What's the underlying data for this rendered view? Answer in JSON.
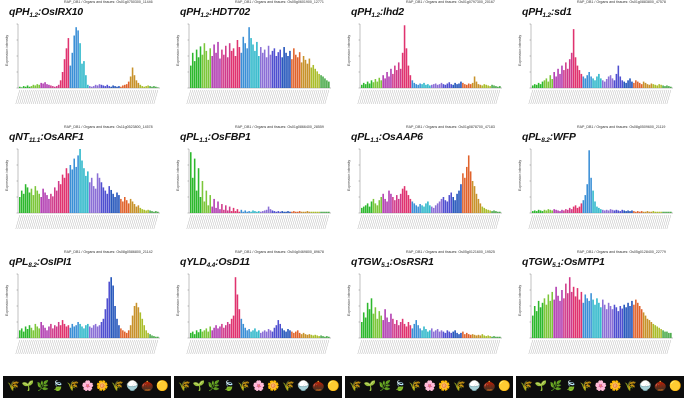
{
  "header_text": "RAP_DB1 / Organs and tissues",
  "ylabel": "Expression intensity",
  "organ_strip": [
    "🌾",
    "🌱",
    "🌿",
    "🍃",
    "🌾",
    "🌸",
    "🌼",
    "🌾",
    "🍚",
    "🌰",
    "🟡"
  ],
  "colors": [
    "#2db82d",
    "#7cc63a",
    "#b03ab0",
    "#d03a8a",
    "#e0336f",
    "#3a8fd6",
    "#2bb7c9",
    "#8b6fd6",
    "#4f4fd0",
    "#1c4fb8",
    "#e0622b",
    "#c8922b",
    "#aabd2a",
    "#46a846"
  ],
  "panels": [
    {
      "title_pre": "qPH",
      "title_sub": "1.2",
      "gene": "OsIRX10",
      "header_id": "Os01g0750300_11446",
      "chart_data": {
        "type": "bar",
        "ylim": [
          0,
          1
        ],
        "values": [
          0.02,
          0.01,
          0.03,
          0.02,
          0.04,
          0.02,
          0.03,
          0.05,
          0.04,
          0.06,
          0.05,
          0.08,
          0.07,
          0.09,
          0.06,
          0.05,
          0.04,
          0.03,
          0.02,
          0.03,
          0.05,
          0.12,
          0.25,
          0.45,
          0.62,
          0.78,
          0.35,
          0.55,
          0.82,
          0.95,
          0.9,
          0.7,
          0.38,
          0.42,
          0.2,
          0.05,
          0.03,
          0.02,
          0.03,
          0.05,
          0.04,
          0.06,
          0.05,
          0.04,
          0.03,
          0.05,
          0.03,
          0.02,
          0.04,
          0.03,
          0.02,
          0.03,
          0.02,
          0.04,
          0.05,
          0.06,
          0.1,
          0.18,
          0.32,
          0.2,
          0.12,
          0.08,
          0.05,
          0.03,
          0.02,
          0.03,
          0.04,
          0.03,
          0.02,
          0.03,
          0.02,
          0.01
        ]
      }
    },
    {
      "title_pre": "qPH",
      "title_sub": "1.2",
      "gene": "HDT702",
      "header_id": "Os05g0601900_12771",
      "chart_data": {
        "type": "bar",
        "ylim": [
          0,
          1
        ],
        "values": [
          0.35,
          0.55,
          0.42,
          0.6,
          0.48,
          0.65,
          0.52,
          0.7,
          0.58,
          0.44,
          0.62,
          0.5,
          0.68,
          0.55,
          0.72,
          0.46,
          0.6,
          0.52,
          0.66,
          0.48,
          0.7,
          0.58,
          0.62,
          0.5,
          0.75,
          0.64,
          0.55,
          0.8,
          0.7,
          0.62,
          0.95,
          0.78,
          0.68,
          0.58,
          0.72,
          0.5,
          0.64,
          0.55,
          0.6,
          0.48,
          0.66,
          0.52,
          0.58,
          0.62,
          0.5,
          0.56,
          0.6,
          0.48,
          0.64,
          0.55,
          0.5,
          0.58,
          0.45,
          0.62,
          0.52,
          0.48,
          0.56,
          0.4,
          0.5,
          0.44,
          0.38,
          0.46,
          0.32,
          0.36,
          0.3,
          0.26,
          0.22,
          0.2,
          0.18,
          0.15,
          0.12,
          0.1
        ]
      }
    },
    {
      "title_pre": "qPH",
      "title_sub": "1.2",
      "gene": "lhd2",
      "header_id": "Os01g0797300_20167",
      "chart_data": {
        "type": "bar",
        "ylim": [
          0,
          1
        ],
        "values": [
          0.05,
          0.08,
          0.06,
          0.1,
          0.07,
          0.12,
          0.09,
          0.14,
          0.1,
          0.16,
          0.12,
          0.2,
          0.15,
          0.25,
          0.18,
          0.3,
          0.22,
          0.35,
          0.28,
          0.4,
          0.3,
          0.55,
          0.98,
          0.62,
          0.35,
          0.2,
          0.12,
          0.08,
          0.06,
          0.05,
          0.07,
          0.06,
          0.08,
          0.05,
          0.06,
          0.04,
          0.05,
          0.06,
          0.07,
          0.05,
          0.06,
          0.08,
          0.06,
          0.05,
          0.07,
          0.09,
          0.06,
          0.05,
          0.08,
          0.06,
          0.07,
          0.1,
          0.08,
          0.06,
          0.05,
          0.07,
          0.06,
          0.08,
          0.18,
          0.1,
          0.06,
          0.05,
          0.04,
          0.06,
          0.05,
          0.04,
          0.03,
          0.05,
          0.04,
          0.03,
          0.02,
          0.03
        ]
      }
    },
    {
      "title_pre": "qPH",
      "title_sub": "1.2",
      "gene": "sd1",
      "header_id": "Os01g0883800_47578",
      "chart_data": {
        "type": "bar",
        "ylim": [
          0,
          1
        ],
        "values": [
          0.04,
          0.06,
          0.05,
          0.08,
          0.06,
          0.1,
          0.12,
          0.15,
          0.1,
          0.2,
          0.14,
          0.25,
          0.18,
          0.3,
          0.22,
          0.35,
          0.28,
          0.4,
          0.3,
          0.45,
          0.55,
          0.92,
          0.48,
          0.35,
          0.28,
          0.22,
          0.18,
          0.15,
          0.2,
          0.25,
          0.18,
          0.15,
          0.12,
          0.18,
          0.22,
          0.15,
          0.12,
          0.1,
          0.14,
          0.18,
          0.2,
          0.15,
          0.12,
          0.22,
          0.35,
          0.18,
          0.12,
          0.1,
          0.08,
          0.12,
          0.15,
          0.1,
          0.08,
          0.12,
          0.1,
          0.08,
          0.06,
          0.1,
          0.08,
          0.06,
          0.05,
          0.07,
          0.06,
          0.05,
          0.04,
          0.06,
          0.05,
          0.04,
          0.03,
          0.04,
          0.03,
          0.02
        ]
      }
    },
    {
      "title_pre": "qNT",
      "title_sub": "11.1",
      "gene": "OsARF1",
      "header_id": "Os11g0523800_14578",
      "chart_data": {
        "type": "bar",
        "ylim": [
          0,
          1
        ],
        "values": [
          0.25,
          0.35,
          0.3,
          0.45,
          0.4,
          0.32,
          0.38,
          0.28,
          0.42,
          0.35,
          0.3,
          0.25,
          0.38,
          0.32,
          0.28,
          0.22,
          0.3,
          0.26,
          0.4,
          0.35,
          0.5,
          0.45,
          0.6,
          0.55,
          0.7,
          0.62,
          0.75,
          0.68,
          0.85,
          0.72,
          0.9,
          1.0,
          0.82,
          0.7,
          0.58,
          0.65,
          0.48,
          0.55,
          0.42,
          0.38,
          0.62,
          0.55,
          0.48,
          0.4,
          0.35,
          0.3,
          0.42,
          0.36,
          0.3,
          0.25,
          0.32,
          0.28,
          0.22,
          0.18,
          0.25,
          0.2,
          0.15,
          0.22,
          0.18,
          0.14,
          0.1,
          0.12,
          0.08,
          0.06,
          0.05,
          0.04,
          0.05,
          0.04,
          0.03,
          0.02,
          0.03,
          0.02
        ]
      }
    },
    {
      "title_pre": "qPL",
      "title_sub": "1.1",
      "gene": "OsFBP1",
      "header_id": "Os01g0866400_28559",
      "chart_data": {
        "type": "bar",
        "ylim": [
          0,
          1
        ],
        "values": [
          0.95,
          0.55,
          0.85,
          0.35,
          0.7,
          0.25,
          0.5,
          0.18,
          0.35,
          0.12,
          0.28,
          0.1,
          0.22,
          0.08,
          0.18,
          0.06,
          0.14,
          0.05,
          0.12,
          0.04,
          0.1,
          0.03,
          0.08,
          0.03,
          0.06,
          0.02,
          0.05,
          0.02,
          0.04,
          0.02,
          0.03,
          0.02,
          0.04,
          0.03,
          0.02,
          0.03,
          0.02,
          0.03,
          0.04,
          0.05,
          0.1,
          0.06,
          0.04,
          0.03,
          0.02,
          0.03,
          0.02,
          0.03,
          0.02,
          0.02,
          0.03,
          0.02,
          0.02,
          0.03,
          0.02,
          0.02,
          0.03,
          0.02,
          0.02,
          0.02,
          0.03,
          0.02,
          0.02,
          0.02,
          0.02,
          0.02,
          0.02,
          0.02,
          0.02,
          0.02,
          0.02,
          0.02
        ]
      }
    },
    {
      "title_pre": "qPL",
      "title_sub": "1.1",
      "gene": "OsAAP6",
      "header_id": "Os01g0878700_47183",
      "chart_data": {
        "type": "bar",
        "ylim": [
          0,
          1
        ],
        "values": [
          0.08,
          0.1,
          0.12,
          0.15,
          0.1,
          0.18,
          0.22,
          0.15,
          0.12,
          0.2,
          0.25,
          0.3,
          0.22,
          0.18,
          0.35,
          0.3,
          0.25,
          0.2,
          0.28,
          0.22,
          0.3,
          0.38,
          0.42,
          0.35,
          0.28,
          0.22,
          0.18,
          0.15,
          0.12,
          0.1,
          0.14,
          0.12,
          0.1,
          0.15,
          0.18,
          0.12,
          0.1,
          0.08,
          0.12,
          0.15,
          0.18,
          0.22,
          0.25,
          0.2,
          0.18,
          0.28,
          0.32,
          0.25,
          0.2,
          0.3,
          0.35,
          0.45,
          0.62,
          0.55,
          0.72,
          0.9,
          0.65,
          0.5,
          0.42,
          0.3,
          0.22,
          0.15,
          0.1,
          0.08,
          0.06,
          0.05,
          0.04,
          0.03,
          0.04,
          0.03,
          0.02,
          0.02
        ]
      }
    },
    {
      "title_pre": "qPL",
      "title_sub": "8.2",
      "gene": "WFP",
      "header_id": "Os08g0509600_21119",
      "chart_data": {
        "type": "bar",
        "ylim": [
          0,
          1
        ],
        "values": [
          0.03,
          0.04,
          0.03,
          0.05,
          0.04,
          0.03,
          0.05,
          0.04,
          0.06,
          0.05,
          0.04,
          0.06,
          0.05,
          0.04,
          0.03,
          0.05,
          0.04,
          0.06,
          0.05,
          0.08,
          0.06,
          0.1,
          0.12,
          0.08,
          0.1,
          0.15,
          0.2,
          0.28,
          0.45,
          0.98,
          0.55,
          0.35,
          0.18,
          0.1,
          0.08,
          0.06,
          0.05,
          0.04,
          0.05,
          0.04,
          0.06,
          0.05,
          0.04,
          0.05,
          0.04,
          0.03,
          0.05,
          0.04,
          0.03,
          0.04,
          0.03,
          0.04,
          0.03,
          0.02,
          0.03,
          0.02,
          0.03,
          0.02,
          0.02,
          0.03,
          0.02,
          0.02,
          0.03,
          0.02,
          0.02,
          0.02,
          0.02,
          0.02,
          0.02,
          0.02,
          0.02,
          0.02
        ]
      }
    },
    {
      "title_pre": "qPL",
      "title_sub": "8.2",
      "gene": "OsIPI1",
      "header_id": "Os08g0586800_21142",
      "chart_data": {
        "type": "bar",
        "ylim": [
          0,
          1
        ],
        "values": [
          0.12,
          0.15,
          0.1,
          0.18,
          0.14,
          0.2,
          0.16,
          0.12,
          0.22,
          0.18,
          0.15,
          0.25,
          0.2,
          0.16,
          0.12,
          0.18,
          0.22,
          0.15,
          0.2,
          0.18,
          0.25,
          0.2,
          0.28,
          0.22,
          0.18,
          0.2,
          0.16,
          0.22,
          0.18,
          0.2,
          0.25,
          0.22,
          0.18,
          0.15,
          0.2,
          0.22,
          0.18,
          0.16,
          0.2,
          0.22,
          0.18,
          0.2,
          0.25,
          0.3,
          0.45,
          0.62,
          0.88,
          0.95,
          0.82,
          0.5,
          0.3,
          0.2,
          0.15,
          0.12,
          0.1,
          0.08,
          0.12,
          0.2,
          0.35,
          0.5,
          0.55,
          0.48,
          0.4,
          0.3,
          0.2,
          0.12,
          0.08,
          0.06,
          0.04,
          0.03,
          0.02,
          0.02
        ]
      }
    },
    {
      "title_pre": "qYLD",
      "title_sub": "4.4",
      "gene": "OsD11",
      "header_id": "Os04g0469800_89678",
      "chart_data": {
        "type": "bar",
        "ylim": [
          0,
          1
        ],
        "values": [
          0.08,
          0.1,
          0.06,
          0.12,
          0.09,
          0.14,
          0.1,
          0.12,
          0.15,
          0.1,
          0.18,
          0.12,
          0.16,
          0.2,
          0.15,
          0.18,
          0.22,
          0.16,
          0.2,
          0.25,
          0.22,
          0.3,
          0.35,
          0.95,
          0.68,
          0.45,
          0.3,
          0.22,
          0.16,
          0.12,
          0.14,
          0.1,
          0.12,
          0.15,
          0.1,
          0.12,
          0.08,
          0.1,
          0.12,
          0.1,
          0.14,
          0.12,
          0.1,
          0.16,
          0.2,
          0.28,
          0.22,
          0.15,
          0.12,
          0.1,
          0.14,
          0.12,
          0.1,
          0.08,
          0.1,
          0.12,
          0.08,
          0.06,
          0.08,
          0.06,
          0.05,
          0.06,
          0.05,
          0.04,
          0.05,
          0.04,
          0.03,
          0.04,
          0.03,
          0.02,
          0.03,
          0.02
        ]
      }
    },
    {
      "title_pre": "qTGW",
      "title_sub": "5.1",
      "gene": "OsRSR1",
      "header_id": "Os05g0121600_19525",
      "chart_data": {
        "type": "bar",
        "ylim": [
          0,
          1
        ],
        "values": [
          0.25,
          0.4,
          0.32,
          0.55,
          0.45,
          0.62,
          0.38,
          0.48,
          0.3,
          0.42,
          0.35,
          0.28,
          0.45,
          0.32,
          0.25,
          0.38,
          0.3,
          0.22,
          0.28,
          0.2,
          0.25,
          0.3,
          0.22,
          0.18,
          0.25,
          0.2,
          0.15,
          0.22,
          0.28,
          0.2,
          0.15,
          0.12,
          0.18,
          0.14,
          0.1,
          0.12,
          0.15,
          0.1,
          0.12,
          0.14,
          0.1,
          0.12,
          0.1,
          0.08,
          0.12,
          0.1,
          0.08,
          0.1,
          0.12,
          0.08,
          0.06,
          0.08,
          0.1,
          0.06,
          0.08,
          0.06,
          0.05,
          0.06,
          0.05,
          0.04,
          0.05,
          0.04,
          0.06,
          0.04,
          0.03,
          0.04,
          0.03,
          0.02,
          0.03,
          0.02,
          0.02,
          0.02
        ]
      }
    },
    {
      "title_pre": "qTGW",
      "title_sub": "5.1",
      "gene": "OsMTP1",
      "header_id": "Os05g0128400_22779",
      "chart_data": {
        "type": "bar",
        "ylim": [
          0,
          1
        ],
        "values": [
          0.35,
          0.5,
          0.42,
          0.58,
          0.48,
          0.55,
          0.62,
          0.52,
          0.68,
          0.58,
          0.72,
          0.6,
          0.8,
          0.66,
          0.58,
          0.75,
          0.62,
          0.85,
          0.7,
          0.95,
          0.72,
          0.8,
          0.65,
          0.78,
          0.6,
          0.72,
          0.55,
          0.68,
          0.62,
          0.58,
          0.7,
          0.6,
          0.52,
          0.62,
          0.55,
          0.48,
          0.6,
          0.52,
          0.45,
          0.55,
          0.5,
          0.45,
          0.52,
          0.48,
          0.42,
          0.5,
          0.46,
          0.52,
          0.48,
          0.55,
          0.5,
          0.58,
          0.52,
          0.6,
          0.55,
          0.5,
          0.45,
          0.4,
          0.35,
          0.3,
          0.28,
          0.25,
          0.22,
          0.2,
          0.18,
          0.16,
          0.14,
          0.12,
          0.1,
          0.1,
          0.08,
          0.08
        ]
      }
    }
  ]
}
